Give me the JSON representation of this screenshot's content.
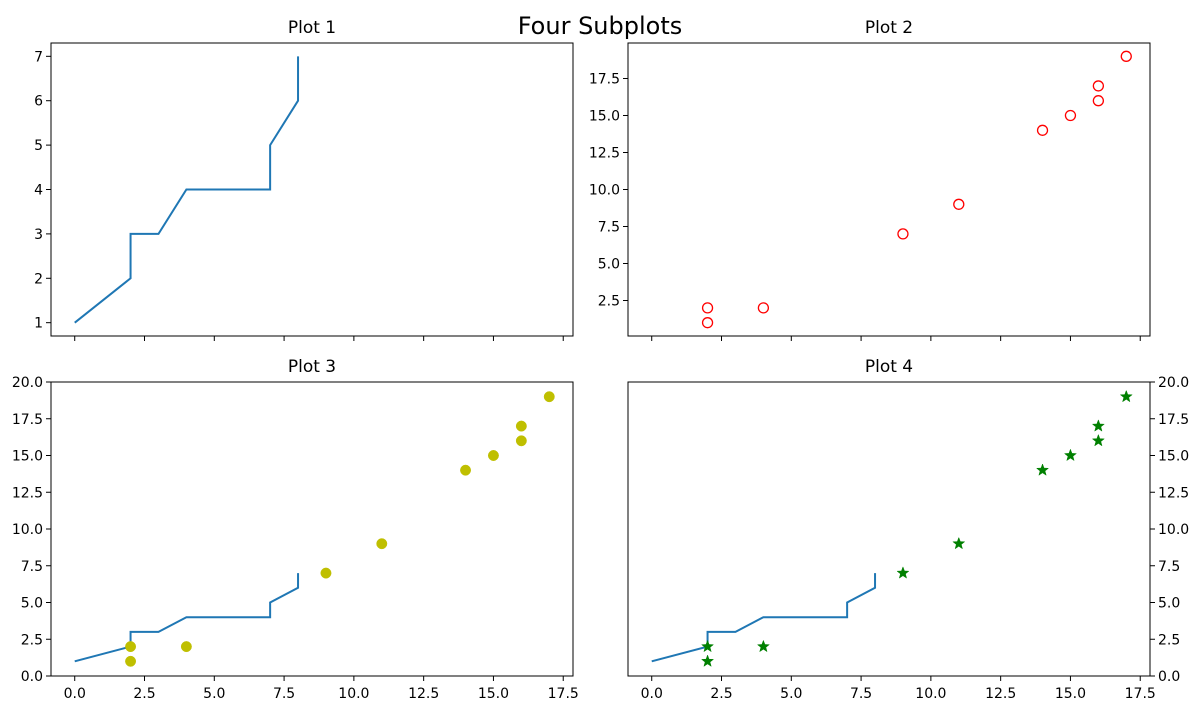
{
  "figure": {
    "title": "Four Subplots"
  },
  "chart_data": [
    {
      "type": "line",
      "title": "Plot 1",
      "xlabel": "",
      "ylabel": "",
      "x": [
        0,
        2,
        2,
        3,
        4,
        7,
        7,
        8,
        8
      ],
      "y": [
        1,
        2,
        3,
        3,
        4,
        4,
        5,
        6,
        7
      ],
      "xlim": [
        -0.85,
        17.85
      ],
      "ylim": [
        0.7,
        7.3
      ],
      "xticks": [
        0,
        2.5,
        5,
        7.5,
        10,
        12.5,
        15,
        17.5
      ],
      "xtick_labels_shown": false,
      "yticks": [
        1,
        2,
        3,
        4,
        5,
        6,
        7
      ],
      "ytick_labels": [
        "1",
        "2",
        "3",
        "4",
        "5",
        "6",
        "7"
      ],
      "yaxis_side": "left",
      "grid": false,
      "legend": "none",
      "line_color": "#1f77b4"
    },
    {
      "type": "scatter",
      "title": "Plot 2",
      "xlabel": "",
      "ylabel": "",
      "x": [
        2,
        2,
        4,
        9,
        11,
        14,
        15,
        16,
        16,
        17
      ],
      "y": [
        1,
        2,
        2,
        7,
        9,
        14,
        15,
        16,
        17,
        19
      ],
      "marker": "open-circle",
      "marker_color": "#ff0000",
      "xlim": [
        -0.85,
        17.85
      ],
      "ylim": [
        0.1,
        19.9
      ],
      "xticks": [
        0,
        2.5,
        5,
        7.5,
        10,
        12.5,
        15,
        17.5
      ],
      "xtick_labels_shown": false,
      "yticks": [
        2.5,
        5.0,
        7.5,
        10.0,
        12.5,
        15.0,
        17.5
      ],
      "ytick_labels": [
        "2.5",
        "5.0",
        "7.5",
        "10.0",
        "12.5",
        "15.0",
        "17.5"
      ],
      "yaxis_side": "left",
      "grid": false,
      "legend": "none"
    },
    {
      "type": "scatter",
      "title": "Plot 3",
      "xlabel": "",
      "ylabel": "",
      "series": [
        {
          "kind": "line",
          "x": [
            0,
            2,
            2,
            3,
            4,
            7,
            7,
            8,
            8
          ],
          "y": [
            1,
            2,
            3,
            3,
            4,
            4,
            5,
            6,
            7
          ],
          "color": "#1f77b4"
        },
        {
          "kind": "scatter",
          "marker": "filled-circle",
          "x": [
            2,
            2,
            4,
            9,
            11,
            14,
            15,
            16,
            16,
            17
          ],
          "y": [
            1,
            2,
            2,
            7,
            9,
            14,
            15,
            16,
            17,
            19
          ],
          "color": "#bfbf00"
        }
      ],
      "xlim": [
        -0.85,
        17.85
      ],
      "ylim": [
        0,
        20
      ],
      "xticks": [
        0,
        2.5,
        5,
        7.5,
        10,
        12.5,
        15,
        17.5
      ],
      "xtick_labels_shown": true,
      "xtick_labels": [
        "0.0",
        "2.5",
        "5.0",
        "7.5",
        "10.0",
        "12.5",
        "15.0",
        "17.5"
      ],
      "yticks": [
        0,
        2.5,
        5,
        7.5,
        10,
        12.5,
        15,
        17.5,
        20
      ],
      "ytick_labels": [
        "0.0",
        "2.5",
        "5.0",
        "7.5",
        "10.0",
        "12.5",
        "15.0",
        "17.5",
        "20.0"
      ],
      "yaxis_side": "left",
      "grid": false,
      "legend": "none"
    },
    {
      "type": "scatter",
      "title": "Plot 4",
      "xlabel": "",
      "ylabel": "",
      "series": [
        {
          "kind": "line",
          "x": [
            0,
            2,
            2,
            3,
            4,
            7,
            7,
            8,
            8
          ],
          "y": [
            1,
            2,
            3,
            3,
            4,
            4,
            5,
            6,
            7
          ],
          "color": "#1f77b4"
        },
        {
          "kind": "scatter",
          "marker": "star",
          "x": [
            2,
            2,
            4,
            9,
            11,
            14,
            15,
            16,
            16,
            17
          ],
          "y": [
            1,
            2,
            2,
            7,
            9,
            14,
            15,
            16,
            17,
            19
          ],
          "color": "#008000"
        }
      ],
      "xlim": [
        -0.85,
        17.85
      ],
      "ylim": [
        0,
        20
      ],
      "xticks": [
        0,
        2.5,
        5,
        7.5,
        10,
        12.5,
        15,
        17.5
      ],
      "xtick_labels_shown": true,
      "xtick_labels": [
        "0.0",
        "2.5",
        "5.0",
        "7.5",
        "10.0",
        "12.5",
        "15.0",
        "17.5"
      ],
      "yticks": [
        0,
        2.5,
        5,
        7.5,
        10,
        12.5,
        15,
        17.5,
        20
      ],
      "ytick_labels": [
        "0.0",
        "2.5",
        "5.0",
        "7.5",
        "10.0",
        "12.5",
        "15.0",
        "17.5",
        "20.0"
      ],
      "yaxis_side": "right",
      "grid": false,
      "legend": "none"
    }
  ]
}
